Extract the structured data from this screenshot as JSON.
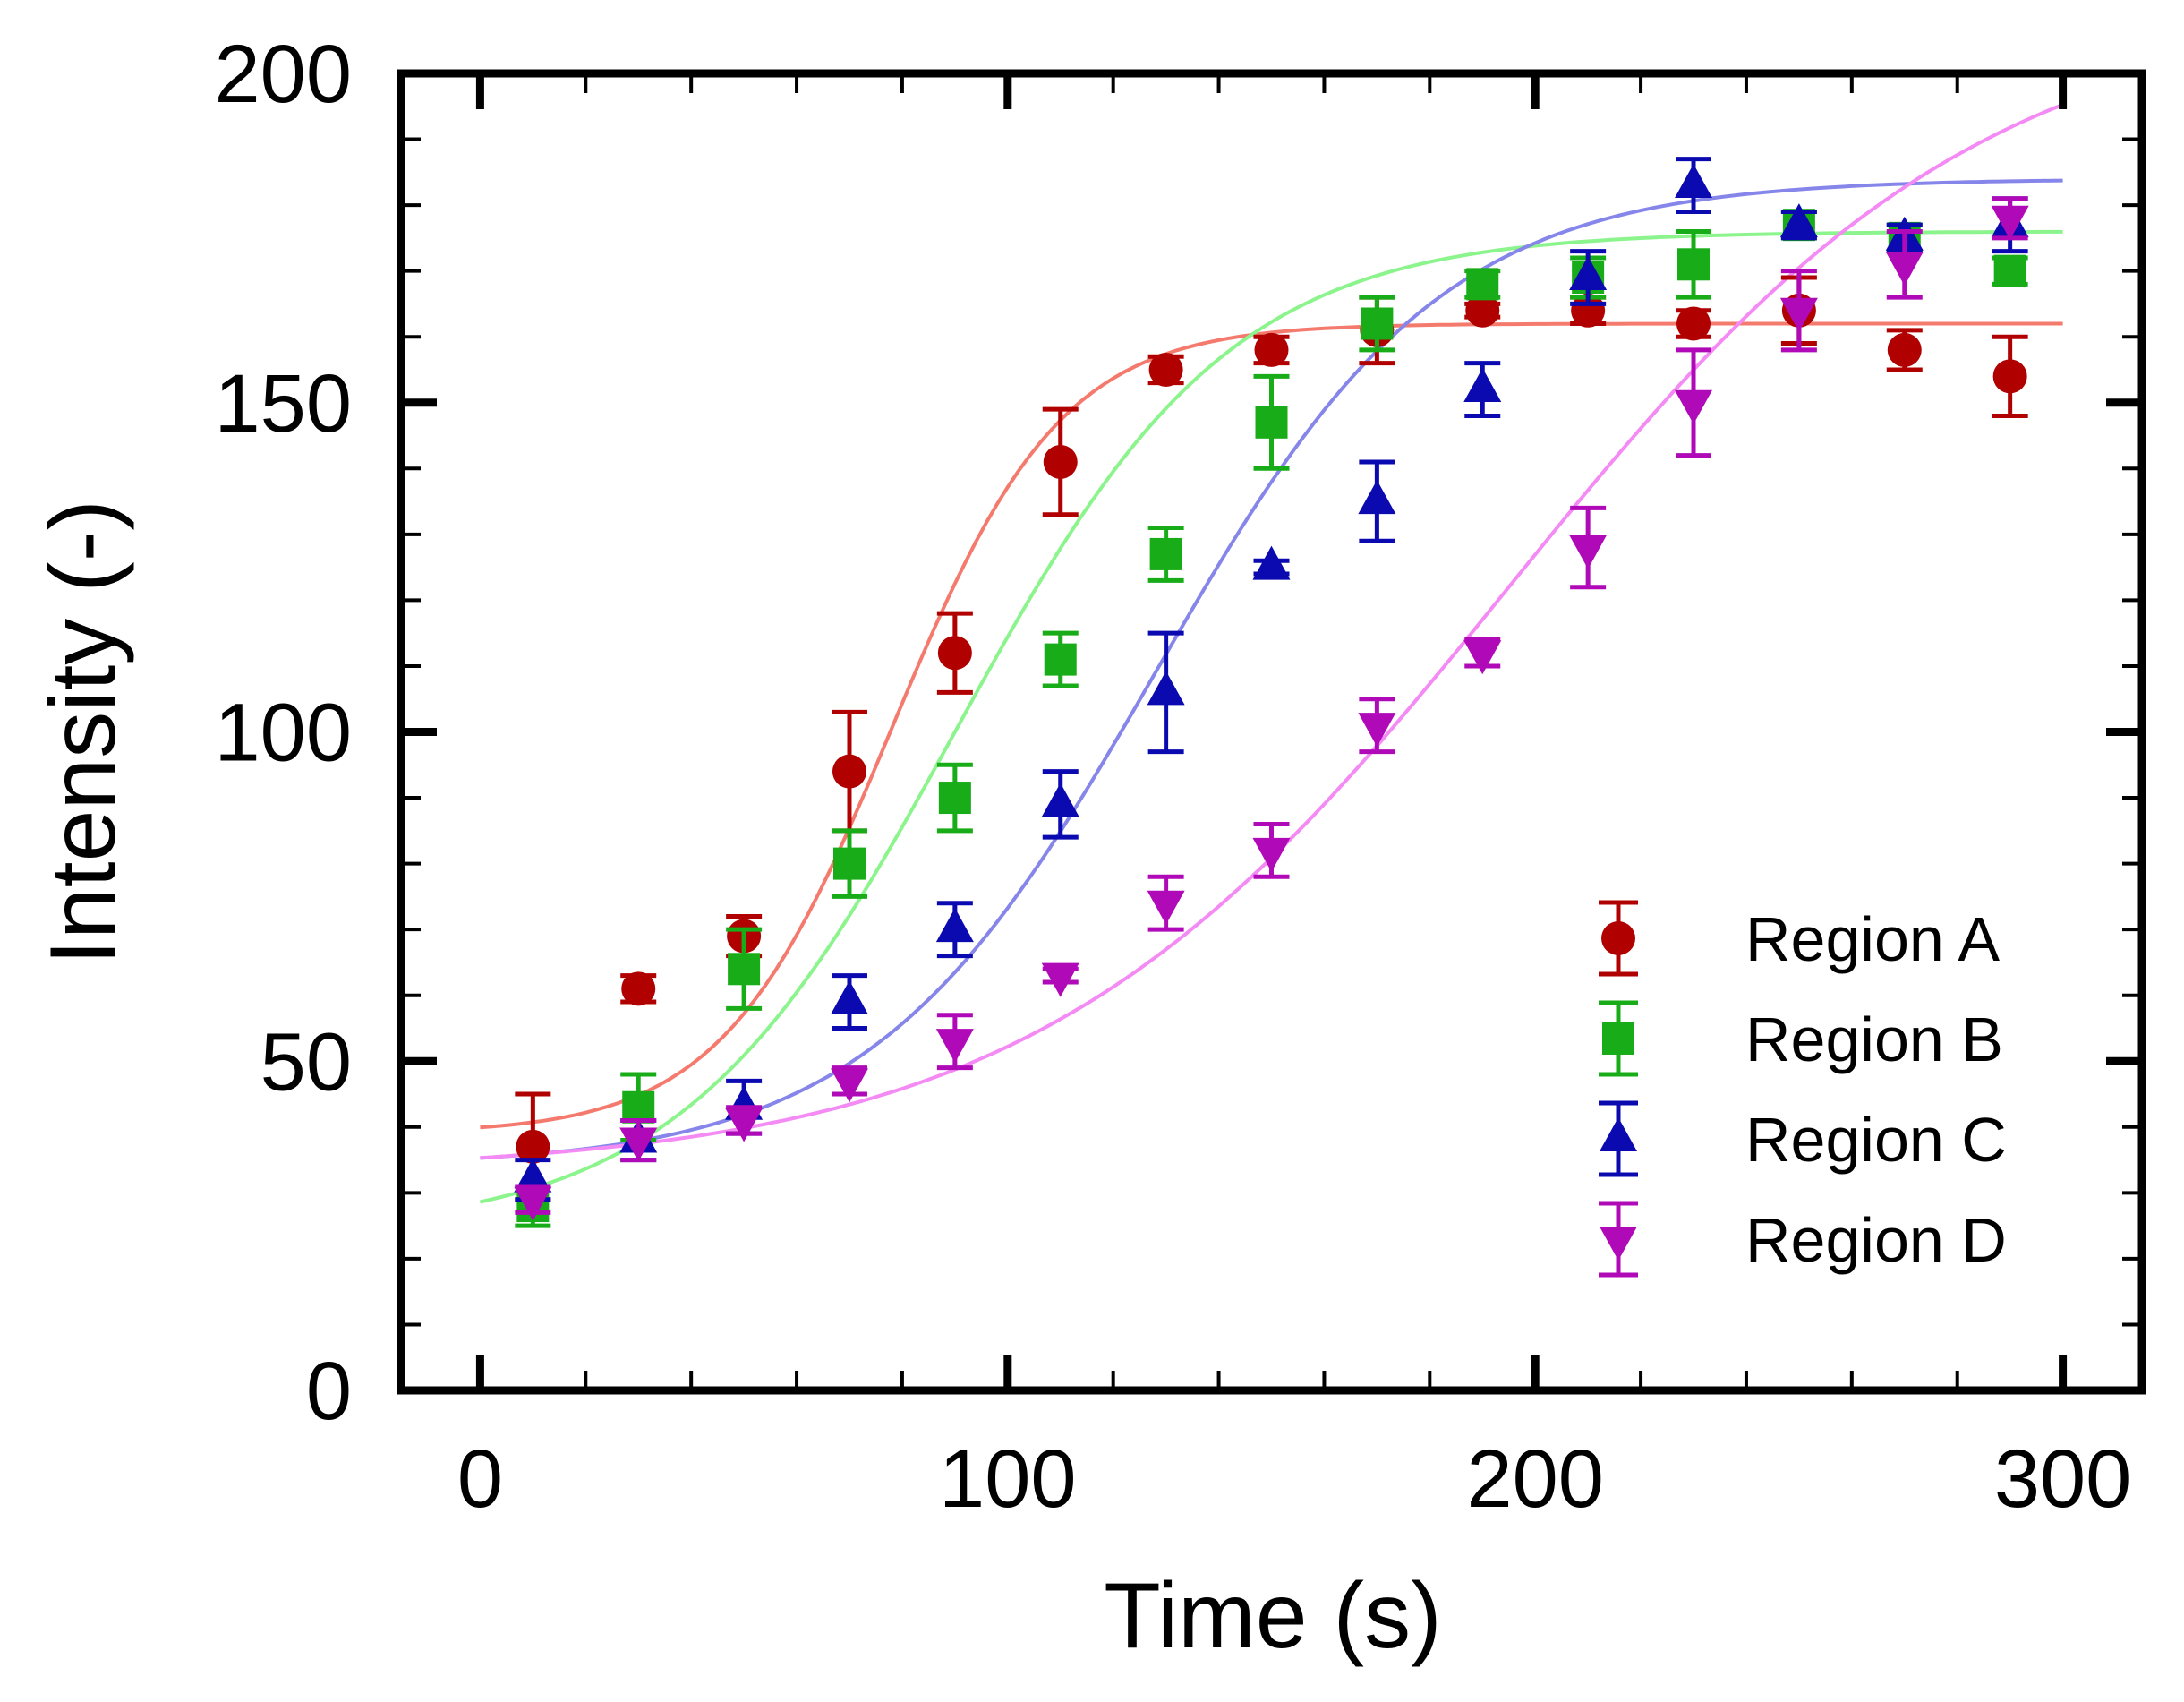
{
  "chart_data": {
    "type": "scatter",
    "xlabel": "Time (s)",
    "ylabel": "Intensity (-)",
    "xlim": [
      -15,
      315
    ],
    "ylim": [
      0,
      200
    ],
    "xticks": [
      0,
      100,
      200,
      300
    ],
    "yticks": [
      0,
      50,
      100,
      150,
      200
    ],
    "legend_position": "lower-right",
    "series": [
      {
        "name": "Region A",
        "color": "#b00000",
        "fit_color": "#f47a6e",
        "marker": "circle",
        "x": [
          10,
          30,
          50,
          70,
          90,
          110,
          130,
          150,
          170,
          190,
          210,
          230,
          250,
          270,
          290
        ],
        "y": [
          37,
          61,
          69,
          94,
          112,
          141,
          155,
          158,
          161,
          164,
          164,
          162,
          164,
          158,
          154
        ],
        "err": [
          8,
          2,
          3,
          9,
          6,
          8,
          2,
          2,
          5,
          1,
          2,
          2,
          5,
          3,
          6
        ],
        "fit": {
          "base": 39,
          "amp": 123,
          "mid": 78,
          "width": 16
        }
      },
      {
        "name": "Region B",
        "color": "#18ad18",
        "fit_color": "#8cf48c",
        "marker": "square",
        "x": [
          10,
          30,
          50,
          70,
          90,
          110,
          130,
          150,
          170,
          190,
          210,
          230,
          250,
          270,
          290
        ],
        "y": [
          28,
          43,
          64,
          80,
          90,
          111,
          127,
          147,
          162,
          168,
          169,
          171,
          177,
          175,
          170
        ],
        "err": [
          3,
          5,
          6,
          5,
          5,
          4,
          4,
          7,
          4,
          2,
          3,
          5,
          2,
          2,
          2
        ],
        "fit": {
          "base": 24,
          "amp": 152,
          "mid": 90,
          "width": 26
        }
      },
      {
        "name": "Region C",
        "color": "#0a0ab0",
        "fit_color": "#8686ea",
        "marker": "triangle-up",
        "x": [
          10,
          30,
          50,
          70,
          90,
          110,
          130,
          150,
          170,
          190,
          210,
          230,
          250,
          270,
          290
        ],
        "y": [
          32,
          38,
          43,
          59,
          70,
          89,
          106,
          125,
          135,
          152,
          169,
          183,
          177,
          175,
          177
        ],
        "err": [
          3,
          3,
          4,
          4,
          4,
          5,
          9,
          1,
          6,
          4,
          4,
          4,
          2,
          2,
          4
        ],
        "fit": {
          "base": 34,
          "amp": 150,
          "mid": 128,
          "width": 27
        }
      },
      {
        "name": "Region D",
        "color": "#b00ab8",
        "fit_color": "#f48af4",
        "marker": "triangle-down",
        "x": [
          10,
          30,
          50,
          70,
          90,
          110,
          130,
          150,
          170,
          190,
          210,
          230,
          250,
          270,
          290
        ],
        "y": [
          29,
          38,
          41,
          47,
          53,
          63,
          74,
          82,
          101,
          112,
          128,
          150,
          164,
          171,
          178
        ],
        "err": [
          2,
          3,
          2,
          2,
          4,
          1,
          4,
          4,
          4,
          2,
          6,
          8,
          6,
          5,
          3
        ],
        "fit": {
          "base": 33,
          "amp": 178,
          "mid": 195,
          "width": 45
        }
      }
    ]
  }
}
